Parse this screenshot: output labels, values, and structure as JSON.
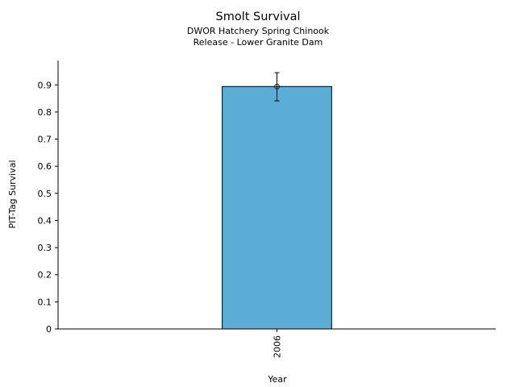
{
  "chart_data": {
    "type": "bar",
    "title": "Smolt Survival",
    "subtitle": [
      "DWOR Hatchery Spring Chinook",
      "Release - Lower Granite Dam"
    ],
    "xlabel": "Year",
    "ylabel": "PIT-Tag Survival",
    "categories": [
      "2006"
    ],
    "values": [
      0.894
    ],
    "error_lower": [
      0.841
    ],
    "error_upper": [
      0.945
    ],
    "ylim": [
      0,
      0.99
    ],
    "yticks": [
      0,
      0.1,
      0.2,
      0.3,
      0.4,
      0.5,
      0.6,
      0.7,
      0.8,
      0.9
    ],
    "ytick_labels": [
      "0",
      "0.1",
      "0.2",
      "0.3",
      "0.4",
      "0.5",
      "0.6",
      "0.7",
      "0.8",
      "0.9"
    ],
    "bar_color": "#5bacd6",
    "grid": false,
    "legend": "none"
  }
}
